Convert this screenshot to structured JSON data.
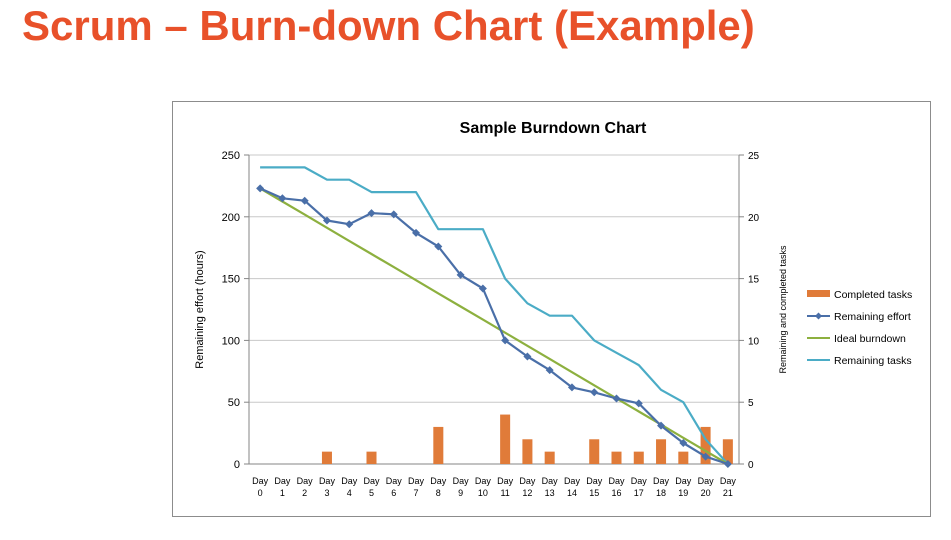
{
  "slide": {
    "title": "Scrum – Burn-down Chart (Example)"
  },
  "colors": {
    "title": "#e8512a",
    "completed_tasks": "#e07b39",
    "remaining_effort": "#4a6fa8",
    "ideal_burndown": "#8db03f",
    "remaining_tasks": "#4bacc6"
  },
  "chart_data": {
    "type": "bar+line",
    "title": "Sample Burndown Chart",
    "ylabel_left": "Remaining effort (hours)",
    "ylabel_right": "Remaining and completed tasks",
    "categories": [
      "Day 0",
      "Day 1",
      "Day 2",
      "Day 3",
      "Day 4",
      "Day 5",
      "Day 6",
      "Day 7",
      "Day 8",
      "Day 9",
      "Day 10",
      "Day 11",
      "Day 12",
      "Day 13",
      "Day 14",
      "Day 15",
      "Day 16",
      "Day 17",
      "Day 18",
      "Day 19",
      "Day 20",
      "Day 21"
    ],
    "category_lines": [
      [
        "Day",
        "0"
      ],
      [
        "Day",
        "1"
      ],
      [
        "Day",
        "2"
      ],
      [
        "Day",
        "3"
      ],
      [
        "Day",
        "4"
      ],
      [
        "Day",
        "5"
      ],
      [
        "Day",
        "6"
      ],
      [
        "Day",
        "7"
      ],
      [
        "Day",
        "8"
      ],
      [
        "Day",
        "9"
      ],
      [
        "Day",
        "10"
      ],
      [
        "Day",
        "11"
      ],
      [
        "Day",
        "12"
      ],
      [
        "Day",
        "13"
      ],
      [
        "Day",
        "14"
      ],
      [
        "Day",
        "15"
      ],
      [
        "Day",
        "16"
      ],
      [
        "Day",
        "17"
      ],
      [
        "Day",
        "18"
      ],
      [
        "Day",
        "19"
      ],
      [
        "Day",
        "20"
      ],
      [
        "Day",
        "21"
      ]
    ],
    "ylim_left": [
      0,
      250
    ],
    "yticks_left": [
      0,
      50,
      100,
      150,
      200,
      250
    ],
    "ylim_right": [
      0,
      25
    ],
    "yticks_right": [
      0,
      5,
      10,
      15,
      20,
      25
    ],
    "grid": true,
    "legend_position": "right",
    "series": [
      {
        "name": "Completed tasks",
        "kind": "bar",
        "axis": "right",
        "values": [
          0,
          0,
          0,
          1,
          0,
          1,
          0,
          0,
          3,
          0,
          0,
          4,
          2,
          1,
          0,
          2,
          1,
          1,
          2,
          1,
          3,
          2
        ]
      },
      {
        "name": "Remaining effort",
        "kind": "line-marker",
        "axis": "left",
        "values": [
          223,
          215,
          213,
          197,
          194,
          203,
          202,
          187,
          176,
          153,
          142,
          100,
          87,
          76,
          62,
          58,
          53,
          49,
          31,
          17,
          6,
          0
        ]
      },
      {
        "name": "Ideal burndown",
        "kind": "line",
        "axis": "left",
        "values": [
          223,
          212.4,
          201.8,
          191.1,
          180.5,
          169.9,
          159.3,
          148.7,
          138,
          127.4,
          116.8,
          106.2,
          95.6,
          85,
          74.3,
          63.7,
          53.1,
          42.5,
          31.9,
          21.2,
          10.6,
          0
        ]
      },
      {
        "name": "Remaining tasks",
        "kind": "line",
        "axis": "right",
        "values": [
          24,
          24,
          24,
          23,
          23,
          22,
          22,
          22,
          19,
          19,
          19,
          15,
          13,
          12,
          12,
          10,
          9,
          8,
          6,
          5,
          2,
          0
        ]
      }
    ]
  }
}
